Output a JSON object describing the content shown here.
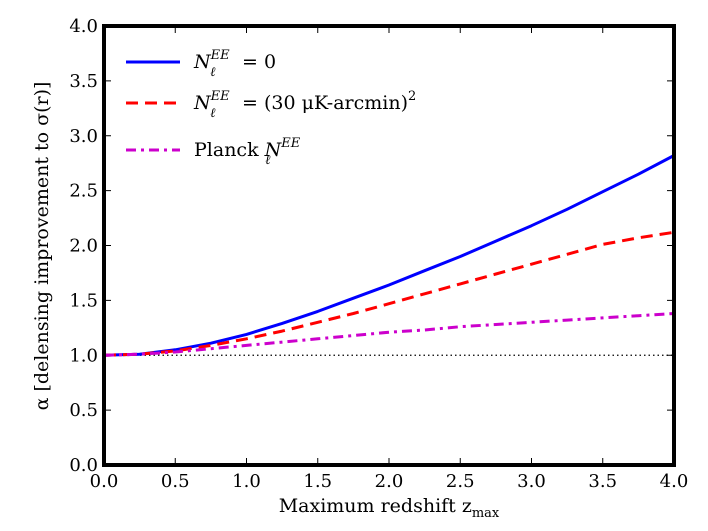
{
  "chart_data": {
    "type": "line",
    "xlabel": "Maximum redshift z",
    "xlabel_sub": "max",
    "ylabel": "α [delensing improvement to σ(r)]",
    "xlim": [
      0.0,
      4.0
    ],
    "ylim": [
      0.0,
      4.0
    ],
    "xticks": [
      "0.0",
      "0.5",
      "1.0",
      "1.5",
      "2.0",
      "2.5",
      "3.0",
      "3.5",
      "4.0"
    ],
    "yticks": [
      "0.0",
      "0.5",
      "1.0",
      "1.5",
      "2.0",
      "2.5",
      "3.0",
      "3.5",
      "4.0"
    ],
    "grid": false,
    "legend_position": "top-left",
    "reference_line": {
      "y": 1.0,
      "style": "dotted",
      "color": "#000000"
    },
    "x": [
      0.0,
      0.25,
      0.5,
      0.75,
      1.0,
      1.25,
      1.5,
      1.75,
      2.0,
      2.25,
      2.5,
      2.75,
      3.0,
      3.25,
      3.5,
      3.75,
      4.0
    ],
    "series": [
      {
        "name_main": "N",
        "name_sup": "EE",
        "name_sub": "ℓ",
        "name_rest": " = 0",
        "color": "#0000ff",
        "style": "solid",
        "values": [
          1.0,
          1.01,
          1.05,
          1.11,
          1.19,
          1.29,
          1.4,
          1.52,
          1.64,
          1.77,
          1.9,
          2.04,
          2.18,
          2.33,
          2.49,
          2.65,
          2.82
        ]
      },
      {
        "name_main": "N",
        "name_sup": "EE",
        "name_sub": "ℓ",
        "name_rest": " = (30 μK-arcmin)",
        "name_rest_sup": "2",
        "color": "#ff0000",
        "style": "dashed",
        "values": [
          1.0,
          1.01,
          1.04,
          1.09,
          1.15,
          1.22,
          1.3,
          1.38,
          1.47,
          1.56,
          1.65,
          1.74,
          1.83,
          1.92,
          2.01,
          2.07,
          2.12
        ]
      },
      {
        "name_prefix": "Planck ",
        "name_main": "N",
        "name_sup": "EE",
        "name_sub": "ℓ",
        "color": "#cc00cc",
        "style": "dashdot",
        "values": [
          1.0,
          1.01,
          1.03,
          1.06,
          1.09,
          1.12,
          1.15,
          1.18,
          1.21,
          1.23,
          1.26,
          1.28,
          1.3,
          1.32,
          1.34,
          1.36,
          1.38
        ]
      }
    ]
  }
}
